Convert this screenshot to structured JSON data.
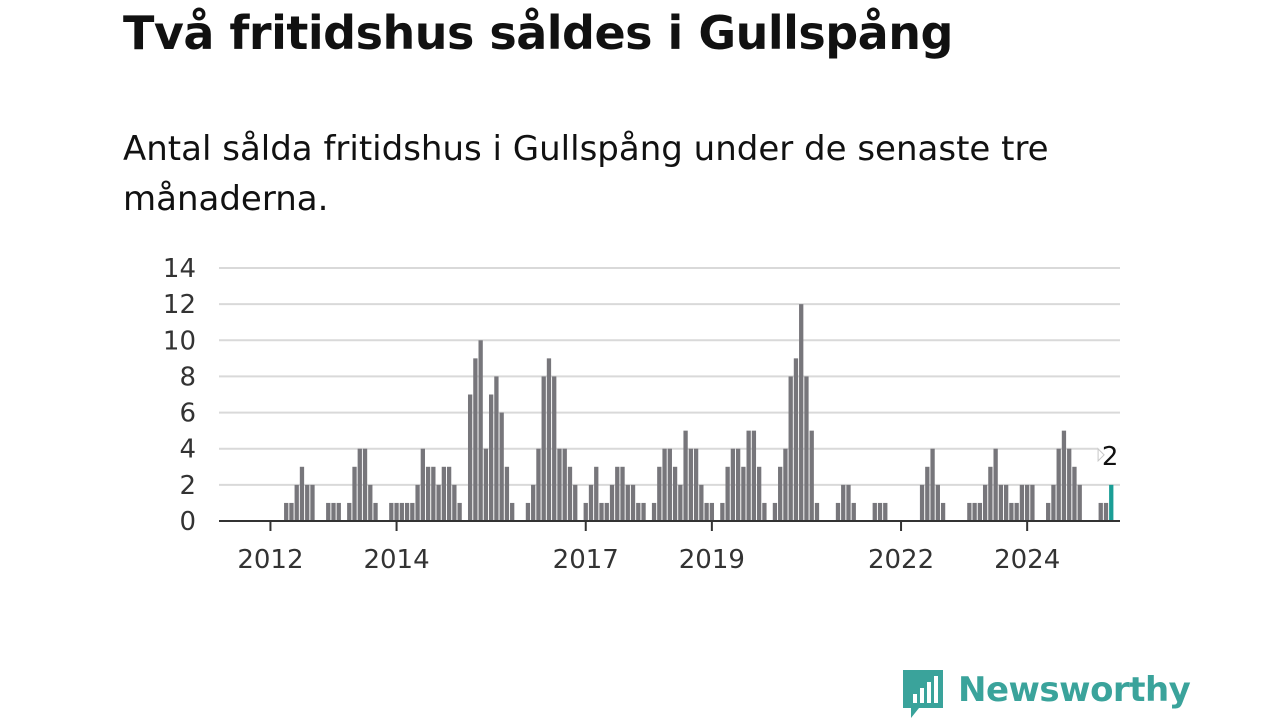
{
  "header": {
    "title": "Två fritidshus såldes i Gullspång",
    "subtitle": "Antal sålda fritidshus i Gullspång under de senaste tre månaderna."
  },
  "brand": {
    "name": "Newsworthy",
    "color": "#3aa39b",
    "icon": "bar-chart-bubble-icon"
  },
  "colors": {
    "bar": "#77767b",
    "highlight": "#1a9e96",
    "grid": "#d9d9d9",
    "axis": "#333333"
  },
  "chart_data": {
    "type": "bar",
    "title": "",
    "xlabel": "",
    "ylabel": "",
    "ylim": [
      0,
      14
    ],
    "yticks": [
      0,
      2,
      4,
      6,
      8,
      10,
      12,
      14
    ],
    "grid": true,
    "x_start": "2011-04",
    "x_end": "2025-07",
    "xtick_labels": [
      {
        "date": "2012-01",
        "label": "2012"
      },
      {
        "date": "2014-01",
        "label": "2014"
      },
      {
        "date": "2017-01",
        "label": "2017"
      },
      {
        "date": "2019-01",
        "label": "2019"
      },
      {
        "date": "2022-01",
        "label": "2022"
      },
      {
        "date": "2024-01",
        "label": "2024"
      }
    ],
    "highlight_label": "2",
    "series": [
      {
        "values": [
          {
            "x": "2011-04",
            "y": 0
          },
          {
            "x": "2011-05",
            "y": 0
          },
          {
            "x": "2011-06",
            "y": 0
          },
          {
            "x": "2011-07",
            "y": 0
          },
          {
            "x": "2011-08",
            "y": 0
          },
          {
            "x": "2011-09",
            "y": 0
          },
          {
            "x": "2011-10",
            "y": 0
          },
          {
            "x": "2011-11",
            "y": 0
          },
          {
            "x": "2011-12",
            "y": 0
          },
          {
            "x": "2012-01",
            "y": 0
          },
          {
            "x": "2012-02",
            "y": 0
          },
          {
            "x": "2012-03",
            "y": 0
          },
          {
            "x": "2012-04",
            "y": 1
          },
          {
            "x": "2012-05",
            "y": 1
          },
          {
            "x": "2012-06",
            "y": 2
          },
          {
            "x": "2012-07",
            "y": 3
          },
          {
            "x": "2012-08",
            "y": 2
          },
          {
            "x": "2012-09",
            "y": 2
          },
          {
            "x": "2012-10",
            "y": 0
          },
          {
            "x": "2012-11",
            "y": 0
          },
          {
            "x": "2012-12",
            "y": 1
          },
          {
            "x": "2013-01",
            "y": 1
          },
          {
            "x": "2013-02",
            "y": 1
          },
          {
            "x": "2013-03",
            "y": 0
          },
          {
            "x": "2013-04",
            "y": 1
          },
          {
            "x": "2013-05",
            "y": 3
          },
          {
            "x": "2013-06",
            "y": 4
          },
          {
            "x": "2013-07",
            "y": 4
          },
          {
            "x": "2013-08",
            "y": 2
          },
          {
            "x": "2013-09",
            "y": 1
          },
          {
            "x": "2013-10",
            "y": 0
          },
          {
            "x": "2013-11",
            "y": 0
          },
          {
            "x": "2013-12",
            "y": 1
          },
          {
            "x": "2014-01",
            "y": 1
          },
          {
            "x": "2014-02",
            "y": 1
          },
          {
            "x": "2014-03",
            "y": 1
          },
          {
            "x": "2014-04",
            "y": 1
          },
          {
            "x": "2014-05",
            "y": 2
          },
          {
            "x": "2014-06",
            "y": 4
          },
          {
            "x": "2014-07",
            "y": 3
          },
          {
            "x": "2014-08",
            "y": 3
          },
          {
            "x": "2014-09",
            "y": 2
          },
          {
            "x": "2014-10",
            "y": 3
          },
          {
            "x": "2014-11",
            "y": 3
          },
          {
            "x": "2014-12",
            "y": 2
          },
          {
            "x": "2015-01",
            "y": 1
          },
          {
            "x": "2015-02",
            "y": 0
          },
          {
            "x": "2015-03",
            "y": 7
          },
          {
            "x": "2015-04",
            "y": 9
          },
          {
            "x": "2015-05",
            "y": 10
          },
          {
            "x": "2015-06",
            "y": 4
          },
          {
            "x": "2015-07",
            "y": 7
          },
          {
            "x": "2015-08",
            "y": 8
          },
          {
            "x": "2015-09",
            "y": 6
          },
          {
            "x": "2015-10",
            "y": 3
          },
          {
            "x": "2015-11",
            "y": 1
          },
          {
            "x": "2015-12",
            "y": 0
          },
          {
            "x": "2016-01",
            "y": 0
          },
          {
            "x": "2016-02",
            "y": 1
          },
          {
            "x": "2016-03",
            "y": 2
          },
          {
            "x": "2016-04",
            "y": 4
          },
          {
            "x": "2016-05",
            "y": 8
          },
          {
            "x": "2016-06",
            "y": 9
          },
          {
            "x": "2016-07",
            "y": 8
          },
          {
            "x": "2016-08",
            "y": 4
          },
          {
            "x": "2016-09",
            "y": 4
          },
          {
            "x": "2016-10",
            "y": 3
          },
          {
            "x": "2016-11",
            "y": 2
          },
          {
            "x": "2016-12",
            "y": 0
          },
          {
            "x": "2017-01",
            "y": 1
          },
          {
            "x": "2017-02",
            "y": 2
          },
          {
            "x": "2017-03",
            "y": 3
          },
          {
            "x": "2017-04",
            "y": 1
          },
          {
            "x": "2017-05",
            "y": 1
          },
          {
            "x": "2017-06",
            "y": 2
          },
          {
            "x": "2017-07",
            "y": 3
          },
          {
            "x": "2017-08",
            "y": 3
          },
          {
            "x": "2017-09",
            "y": 2
          },
          {
            "x": "2017-10",
            "y": 2
          },
          {
            "x": "2017-11",
            "y": 1
          },
          {
            "x": "2017-12",
            "y": 1
          },
          {
            "x": "2018-01",
            "y": 0
          },
          {
            "x": "2018-02",
            "y": 1
          },
          {
            "x": "2018-03",
            "y": 3
          },
          {
            "x": "2018-04",
            "y": 4
          },
          {
            "x": "2018-05",
            "y": 4
          },
          {
            "x": "2018-06",
            "y": 3
          },
          {
            "x": "2018-07",
            "y": 2
          },
          {
            "x": "2018-08",
            "y": 5
          },
          {
            "x": "2018-09",
            "y": 4
          },
          {
            "x": "2018-10",
            "y": 4
          },
          {
            "x": "2018-11",
            "y": 2
          },
          {
            "x": "2018-12",
            "y": 1
          },
          {
            "x": "2019-01",
            "y": 1
          },
          {
            "x": "2019-02",
            "y": 0
          },
          {
            "x": "2019-03",
            "y": 1
          },
          {
            "x": "2019-04",
            "y": 3
          },
          {
            "x": "2019-05",
            "y": 4
          },
          {
            "x": "2019-06",
            "y": 4
          },
          {
            "x": "2019-07",
            "y": 3
          },
          {
            "x": "2019-08",
            "y": 5
          },
          {
            "x": "2019-09",
            "y": 5
          },
          {
            "x": "2019-10",
            "y": 3
          },
          {
            "x": "2019-11",
            "y": 1
          },
          {
            "x": "2019-12",
            "y": 0
          },
          {
            "x": "2020-01",
            "y": 1
          },
          {
            "x": "2020-02",
            "y": 3
          },
          {
            "x": "2020-03",
            "y": 4
          },
          {
            "x": "2020-04",
            "y": 8
          },
          {
            "x": "2020-05",
            "y": 9
          },
          {
            "x": "2020-06",
            "y": 12
          },
          {
            "x": "2020-07",
            "y": 8
          },
          {
            "x": "2020-08",
            "y": 5
          },
          {
            "x": "2020-09",
            "y": 1
          },
          {
            "x": "2020-10",
            "y": 0
          },
          {
            "x": "2020-11",
            "y": 0
          },
          {
            "x": "2020-12",
            "y": 0
          },
          {
            "x": "2021-01",
            "y": 1
          },
          {
            "x": "2021-02",
            "y": 2
          },
          {
            "x": "2021-03",
            "y": 2
          },
          {
            "x": "2021-04",
            "y": 1
          },
          {
            "x": "2021-05",
            "y": 0
          },
          {
            "x": "2021-06",
            "y": 0
          },
          {
            "x": "2021-07",
            "y": 0
          },
          {
            "x": "2021-08",
            "y": 1
          },
          {
            "x": "2021-09",
            "y": 1
          },
          {
            "x": "2021-10",
            "y": 1
          },
          {
            "x": "2021-11",
            "y": 0
          },
          {
            "x": "2021-12",
            "y": 0
          },
          {
            "x": "2022-01",
            "y": 0
          },
          {
            "x": "2022-02",
            "y": 0
          },
          {
            "x": "2022-03",
            "y": 0
          },
          {
            "x": "2022-04",
            "y": 0
          },
          {
            "x": "2022-05",
            "y": 2
          },
          {
            "x": "2022-06",
            "y": 3
          },
          {
            "x": "2022-07",
            "y": 4
          },
          {
            "x": "2022-08",
            "y": 2
          },
          {
            "x": "2022-09",
            "y": 1
          },
          {
            "x": "2022-10",
            "y": 0
          },
          {
            "x": "2022-11",
            "y": 0
          },
          {
            "x": "2022-12",
            "y": 0
          },
          {
            "x": "2023-01",
            "y": 0
          },
          {
            "x": "2023-02",
            "y": 1
          },
          {
            "x": "2023-03",
            "y": 1
          },
          {
            "x": "2023-04",
            "y": 1
          },
          {
            "x": "2023-05",
            "y": 2
          },
          {
            "x": "2023-06",
            "y": 3
          },
          {
            "x": "2023-07",
            "y": 4
          },
          {
            "x": "2023-08",
            "y": 2
          },
          {
            "x": "2023-09",
            "y": 2
          },
          {
            "x": "2023-10",
            "y": 1
          },
          {
            "x": "2023-11",
            "y": 1
          },
          {
            "x": "2023-12",
            "y": 2
          },
          {
            "x": "2024-01",
            "y": 2
          },
          {
            "x": "2024-02",
            "y": 2
          },
          {
            "x": "2024-03",
            "y": 0
          },
          {
            "x": "2024-04",
            "y": 0
          },
          {
            "x": "2024-05",
            "y": 1
          },
          {
            "x": "2024-06",
            "y": 2
          },
          {
            "x": "2024-07",
            "y": 4
          },
          {
            "x": "2024-08",
            "y": 5
          },
          {
            "x": "2024-09",
            "y": 4
          },
          {
            "x": "2024-10",
            "y": 3
          },
          {
            "x": "2024-11",
            "y": 2
          },
          {
            "x": "2024-12",
            "y": 0
          },
          {
            "x": "2025-01",
            "y": 0
          },
          {
            "x": "2025-02",
            "y": 0
          },
          {
            "x": "2025-03",
            "y": 1
          },
          {
            "x": "2025-04",
            "y": 1
          },
          {
            "x": "2025-05",
            "y": 2
          }
        ]
      }
    ]
  }
}
